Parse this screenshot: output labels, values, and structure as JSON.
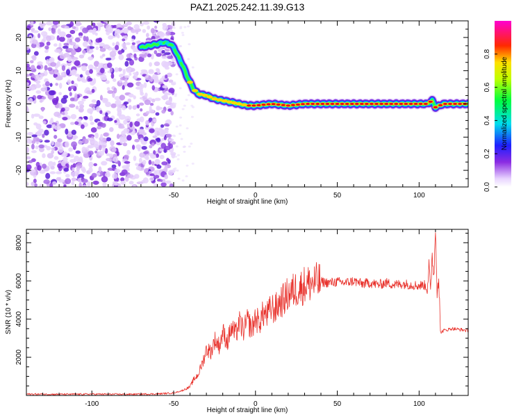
{
  "figure_title": "PAZ1.2025.242.11.39.G13",
  "chart_data": [
    {
      "type": "heatmap",
      "title": "PAZ1.2025.242.11.39.G13",
      "xlabel": "Height of straight line (km)",
      "ylabel": "Frequency (Hz)",
      "xlim": [
        -140,
        130
      ],
      "ylim": [
        -25,
        25
      ],
      "xticks": [
        -100,
        -50,
        0,
        50,
        100
      ],
      "yticks": [
        -20,
        -10,
        0,
        10,
        20
      ],
      "xtick_labels": [
        "-100",
        "-50",
        "0",
        "50",
        "100"
      ],
      "ytick_labels": [
        "-20",
        "-10",
        "0",
        "10",
        "20"
      ],
      "colorbar": {
        "label": "Normalized spectral amplitude",
        "range": [
          0,
          1
        ],
        "ticks": [
          0.0,
          0.2,
          0.4,
          0.6,
          0.8
        ],
        "tick_labels": [
          "0.0",
          "0.2",
          "0.4",
          "0.6",
          "0.8"
        ],
        "colormap": "rainbow (white-violet-blue-cyan-green-yellow-red-magenta)"
      },
      "noise_region_x": [
        -140,
        -50
      ],
      "signal_trace": {
        "x": [
          -70,
          -65,
          -60,
          -56,
          -52,
          -50,
          -48,
          -46,
          -44,
          -42,
          -40,
          -38,
          -35,
          -30,
          -25,
          -20,
          -15,
          -10,
          -5,
          0,
          10,
          20,
          30,
          40,
          50,
          60,
          70,
          80,
          90,
          100,
          105,
          108,
          110,
          115,
          120,
          130
        ],
        "freq_hz": [
          17,
          17.5,
          18,
          18.5,
          18,
          17,
          15,
          13,
          11,
          8.5,
          6.5,
          4.5,
          3,
          2.5,
          1.5,
          1,
          0.5,
          0,
          -0.5,
          -0.5,
          0,
          -0.5,
          0,
          0,
          0,
          0,
          0,
          0,
          0,
          0,
          0,
          1,
          -1,
          0,
          0,
          0
        ],
        "peak_amplitude": 1.0
      }
    },
    {
      "type": "line",
      "xlabel": "Height of straight line (km)",
      "ylabel": "SNR (10 * v/v)",
      "xlim": [
        -140,
        130
      ],
      "ylim": [
        0,
        8700
      ],
      "xticks": [
        -100,
        -50,
        0,
        50,
        100
      ],
      "yticks": [
        2000,
        4000,
        6000,
        8000
      ],
      "xtick_labels": [
        "-100",
        "-50",
        "0",
        "50",
        "100"
      ],
      "ytick_labels": [
        "2000",
        "4000",
        "6000",
        "8000"
      ],
      "line_color": "#e8302a",
      "series": [
        {
          "name": "SNR",
          "x": [
            -140,
            -120,
            -100,
            -80,
            -60,
            -50,
            -45,
            -40,
            -38,
            -35,
            -32,
            -30,
            -27,
            -25,
            -22,
            -20,
            -17,
            -15,
            -12,
            -10,
            -7,
            -5,
            -2,
            0,
            2,
            5,
            7,
            10,
            12,
            15,
            17,
            20,
            22,
            25,
            27,
            30,
            35,
            40,
            45,
            50,
            55,
            60,
            65,
            70,
            75,
            80,
            85,
            90,
            95,
            100,
            103,
            105,
            106,
            107,
            108,
            109,
            110,
            111,
            112,
            113,
            115,
            120,
            125,
            130
          ],
          "values": [
            70,
            60,
            70,
            60,
            80,
            130,
            250,
            450,
            800,
            1100,
            1800,
            2400,
            2300,
            2900,
            2600,
            3300,
            2800,
            3500,
            3200,
            3800,
            3400,
            3900,
            3500,
            4100,
            3800,
            4300,
            4200,
            4600,
            4500,
            4900,
            5000,
            5300,
            5400,
            5600,
            5600,
            5800,
            5900,
            5950,
            5900,
            5950,
            5900,
            6000,
            5850,
            5900,
            5800,
            5900,
            5800,
            5850,
            5800,
            5750,
            5800,
            5600,
            6900,
            5200,
            7500,
            6200,
            8700,
            5600,
            6200,
            3300,
            3400,
            3500,
            3450,
            3400
          ]
        }
      ]
    }
  ]
}
